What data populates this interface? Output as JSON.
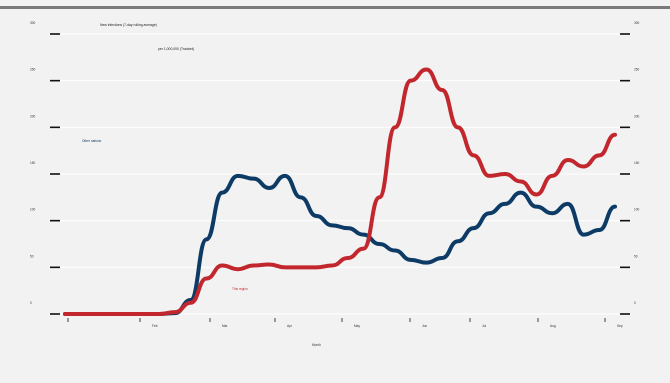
{
  "chart_data": {
    "type": "line",
    "title": "New infections (7-day rolling average)",
    "subtitle": "per 1,000,000 (Tracked)",
    "xlabel": "Month",
    "ylabel_left": "",
    "ylabel_right": "",
    "x_ticks": [
      "Feb",
      "Mar",
      "Apr",
      "May",
      "Jun",
      "Jul",
      "Aug",
      "Sep"
    ],
    "y_left_ticks": [
      "0",
      "50",
      "100",
      "150",
      "200",
      "250",
      "300"
    ],
    "y_right_ticks": [
      "0",
      "50",
      "100",
      "150",
      "200",
      "250",
      "300"
    ],
    "ylim": [
      0,
      300
    ],
    "grid": true,
    "legend": "inline",
    "x": [
      "Jan 27",
      "Feb 3",
      "Feb 10",
      "Feb 17",
      "Feb 24",
      "Mar 2",
      "Mar 9",
      "Mar 16",
      "Mar 23",
      "Mar 30",
      "Apr 6",
      "Apr 13",
      "Apr 20",
      "Apr 27",
      "May 4",
      "May 11",
      "May 18",
      "May 25",
      "Jun 1",
      "Jun 8",
      "Jun 15",
      "Jun 22",
      "Jun 29",
      "Jul 6",
      "Jul 13",
      "Jul 20",
      "Jul 27",
      "Aug 3",
      "Aug 10",
      "Aug 17",
      "Aug 24",
      "Aug 31",
      "Sep 7",
      "Sep 14",
      "Sep 21",
      "Sep 28"
    ],
    "series": [
      {
        "name": "Other nations",
        "color": "#0d3b66",
        "values": [
          0,
          0,
          0,
          0,
          0,
          0,
          0,
          1,
          15,
          80,
          130,
          148,
          145,
          135,
          148,
          125,
          105,
          95,
          92,
          85,
          75,
          68,
          58,
          55,
          60,
          78,
          92,
          108,
          118,
          130,
          115,
          108,
          118,
          85,
          90,
          115
        ]
      },
      {
        "name": "This region",
        "color": "#c1272d",
        "values": [
          0,
          0,
          0,
          0,
          0,
          0,
          0,
          2,
          12,
          38,
          52,
          48,
          52,
          53,
          50,
          50,
          50,
          52,
          60,
          70,
          125,
          200,
          250,
          262,
          240,
          200,
          170,
          148,
          150,
          142,
          128,
          148,
          165,
          158,
          170,
          192
        ]
      }
    ]
  }
}
